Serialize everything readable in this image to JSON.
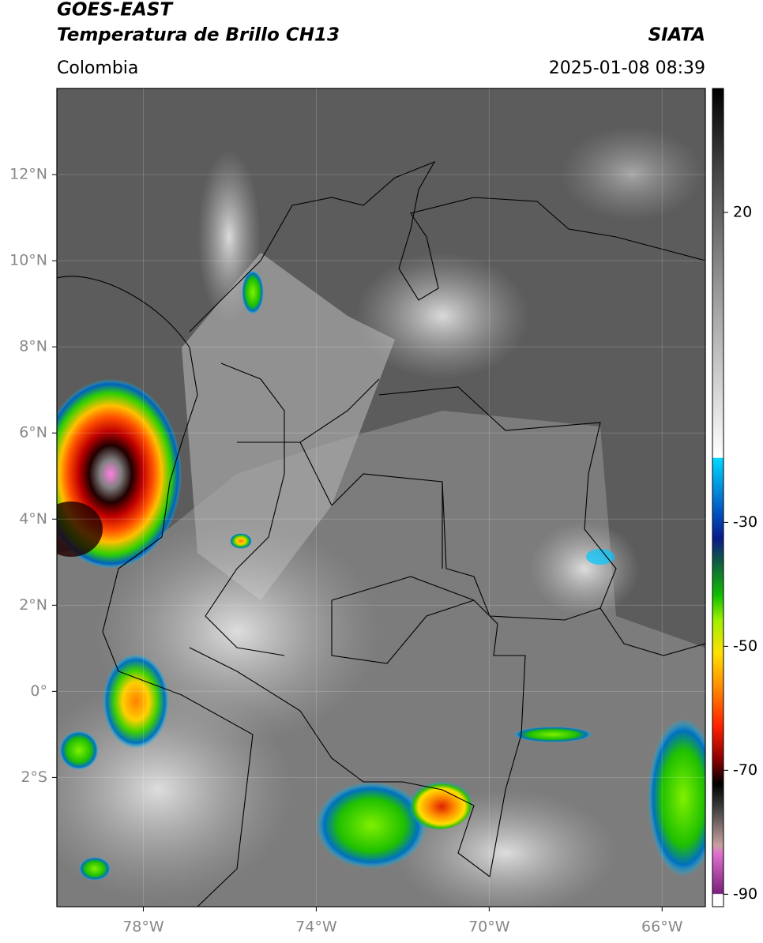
{
  "header": {
    "satellite": "GOES-EAST",
    "product": "Temperatura de Brillo CH13",
    "source": "SIATA",
    "region": "Colombia",
    "datetime": "2025-01-08 08:39"
  },
  "map": {
    "xlim": [
      -80,
      -65
    ],
    "ylim": [
      -5,
      14
    ],
    "grid": true,
    "xticks": [
      {
        "value": -78,
        "label": "78°W"
      },
      {
        "value": -74,
        "label": "74°W"
      },
      {
        "value": -70,
        "label": "70°W"
      },
      {
        "value": -66,
        "label": "66°W"
      }
    ],
    "yticks": [
      {
        "value": 12,
        "label": "12°N"
      },
      {
        "value": 10,
        "label": "10°N"
      },
      {
        "value": 8,
        "label": "8°N"
      },
      {
        "value": 6,
        "label": "6°N"
      },
      {
        "value": 4,
        "label": "4°N"
      },
      {
        "value": 2,
        "label": "2°N"
      },
      {
        "value": 0,
        "label": "0°"
      },
      {
        "value": -2,
        "label": "2°S"
      }
    ]
  },
  "colorbar": {
    "lim": [
      -92,
      40
    ],
    "ticks": [
      20,
      -30,
      -50,
      -70,
      -90
    ]
  }
}
